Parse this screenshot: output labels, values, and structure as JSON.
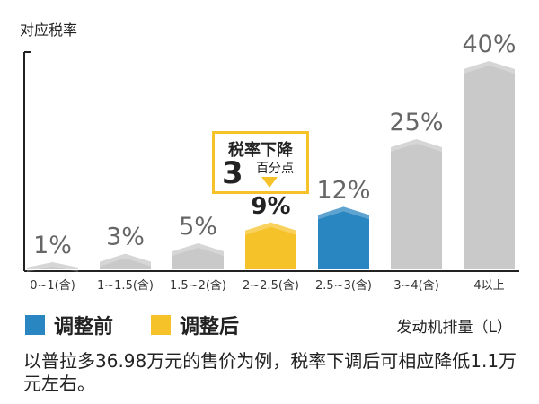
{
  "chart_data": {
    "type": "bar",
    "ylabel": "对应税率",
    "xlabel": "发动机排量（L）",
    "categories": [
      "0~1(含)",
      "1~1.5(含)",
      "1.5~2(含)",
      "2~2.5(含)",
      "2.5~3(含)",
      "3~4(含)",
      "4以上"
    ],
    "values": [
      1,
      3,
      5,
      9,
      12,
      25,
      40
    ],
    "value_labels": [
      "1%",
      "3%",
      "5%",
      "9%",
      "12%",
      "25%",
      "40%"
    ],
    "bar_groups": [
      "none",
      "none",
      "none",
      "after",
      "before",
      "none",
      "none"
    ],
    "ylim": [
      0,
      40
    ],
    "legend": [
      {
        "label": "调整前",
        "color": "#2a86c0"
      },
      {
        "label": "调整后",
        "color": "#f6c22a"
      }
    ],
    "default_color": "#c9c9c9",
    "annotation": {
      "title": "税率下降",
      "number": "3",
      "unit": "百分点",
      "color": "#f6c22a"
    }
  },
  "footnote": "以普拉多36.98万元的售价为例，税率下调后可相应降低1.1万元左右。"
}
